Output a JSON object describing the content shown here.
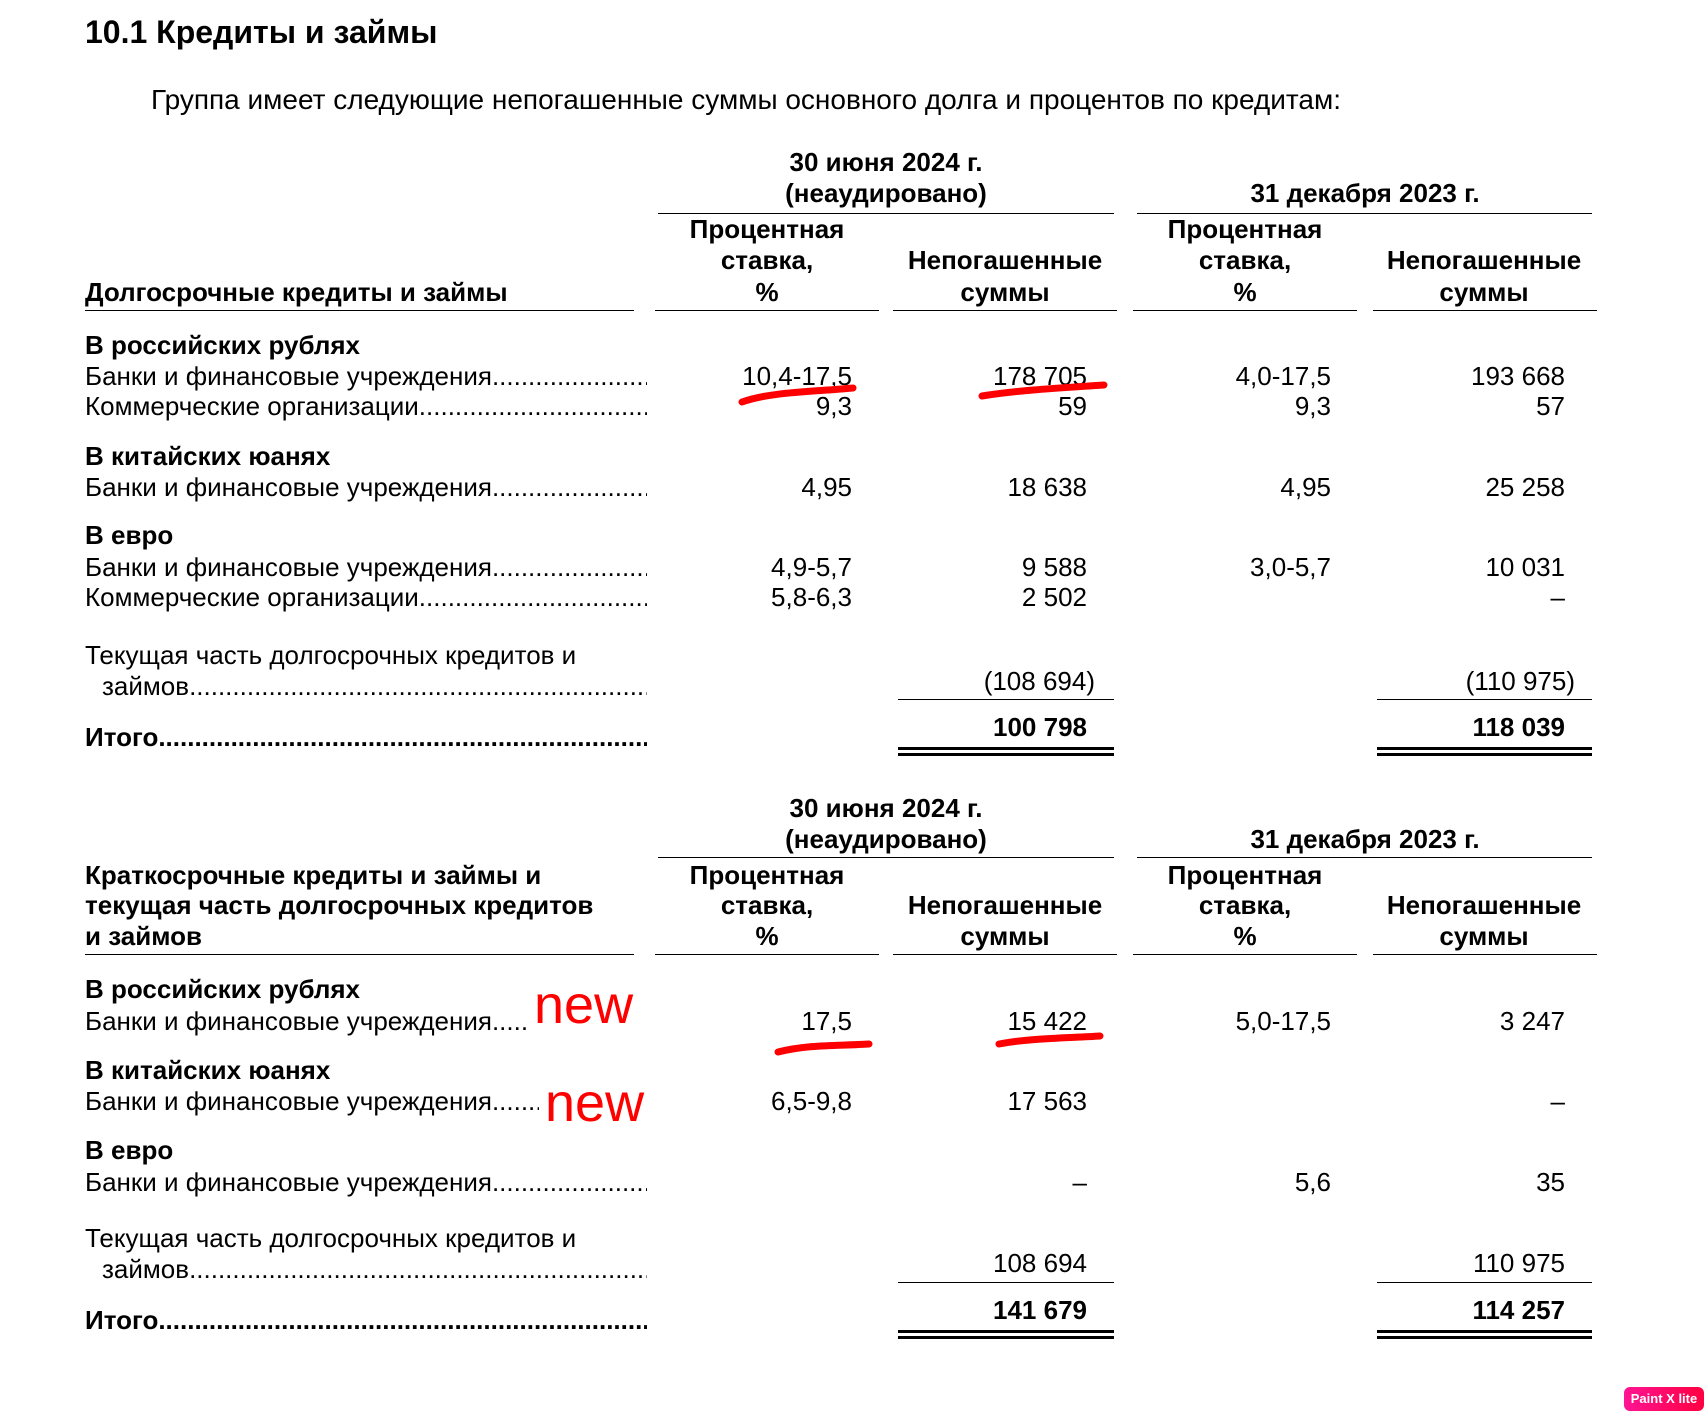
{
  "heading": "10.1 Кредиты и займы",
  "intro": "Группа имеет следующие непогашенные суммы основного долга и процентов по кредитам:",
  "columns": {
    "date1": "30 июня 2024 г.",
    "date1_note": "(неаудировано)",
    "date2": "31 декабря 2023 г.",
    "rate": [
      "Процентная",
      "ставка,",
      "%"
    ],
    "amount": [
      "Непогашенные",
      "суммы"
    ]
  },
  "tables": [
    {
      "title_lines": [
        "Долгосрочные кредиты и займы"
      ],
      "rows": [
        {
          "type": "group",
          "label": "В российских рублях"
        },
        {
          "type": "item",
          "label": "Банки и финансовые учреждения",
          "rate_2024": "10,4-17,5",
          "amount_2024": "178 705",
          "rate_2023": "4,0-17,5",
          "amount_2023": "193 668"
        },
        {
          "type": "item",
          "label": "Коммерческие организации",
          "rate_2024": "9,3",
          "amount_2024": "59",
          "rate_2023": "9,3",
          "amount_2023": "57"
        },
        {
          "type": "group",
          "label": "В китайских юанях"
        },
        {
          "type": "item",
          "label": "Банки и финансовые учреждения",
          "rate_2024": "4,95",
          "amount_2024": "18 638",
          "rate_2023": "4,95",
          "amount_2023": "25 258"
        },
        {
          "type": "group",
          "label": "В евро"
        },
        {
          "type": "item",
          "label": "Банки и финансовые учреждения",
          "rate_2024": "4,9-5,7",
          "amount_2024": "9 588",
          "rate_2023": "3,0-5,7",
          "amount_2023": "10 031"
        },
        {
          "type": "item",
          "label": "Коммерческие организации",
          "rate_2024": "5,8-6,3",
          "amount_2024": "2 502",
          "rate_2023": "",
          "amount_2023": "–"
        }
      ],
      "current_part": {
        "label_line1": "Текущая часть долгосрочных кредитов и",
        "label_line2": "займов",
        "amount_2024": "(108 694)",
        "amount_2023": "(110 975)"
      },
      "total": {
        "label": "Итого",
        "amount_2024": "100 798",
        "amount_2023": "118 039"
      }
    },
    {
      "title_lines": [
        "Краткосрочные кредиты и займы и",
        "текущая часть долгосрочных кредитов",
        "и займов"
      ],
      "rows": [
        {
          "type": "group",
          "label": "В российских рублях"
        },
        {
          "type": "item",
          "label": "Банки и финансовые учреждения",
          "rate_2024": "17,5",
          "amount_2024": "15 422",
          "rate_2023": "5,0-17,5",
          "amount_2023": "3 247"
        },
        {
          "type": "group",
          "label": "В китайских юанях"
        },
        {
          "type": "item",
          "label": "Банки и финансовые учреждения",
          "rate_2024": "6,5-9,8",
          "amount_2024": "17 563",
          "rate_2023": "",
          "amount_2023": "–"
        },
        {
          "type": "group",
          "label": "В евро"
        },
        {
          "type": "item",
          "label": "Банки и финансовые учреждения",
          "rate_2024": "",
          "amount_2024": "–",
          "rate_2023": "5,6",
          "amount_2023": "35"
        }
      ],
      "current_part": {
        "label_line1": "Текущая часть долгосрочных кредитов и",
        "label_line2": "займов",
        "amount_2024": "108 694",
        "amount_2023": "110 975"
      },
      "total": {
        "label": "Итого",
        "amount_2024": "141 679",
        "amount_2023": "114 257"
      }
    }
  ],
  "annotations": {
    "new_label_1": "new",
    "new_label_2": "new",
    "color": "#ff0000"
  },
  "watermark": "Paint X lite"
}
